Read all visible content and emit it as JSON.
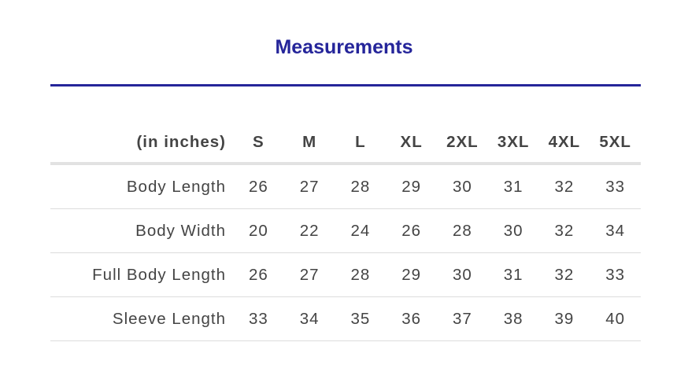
{
  "title": "Measurements",
  "colors": {
    "accent": "#25259a",
    "text": "#444444"
  },
  "table": {
    "unit_label": "(in inches)",
    "sizes": [
      "S",
      "M",
      "L",
      "XL",
      "2XL",
      "3XL",
      "4XL",
      "5XL"
    ],
    "rows": [
      {
        "label": "Body Length",
        "values": [
          "26",
          "27",
          "28",
          "29",
          "30",
          "31",
          "32",
          "33"
        ]
      },
      {
        "label": "Body Width",
        "values": [
          "20",
          "22",
          "24",
          "26",
          "28",
          "30",
          "32",
          "34"
        ]
      },
      {
        "label": "Full Body Length",
        "values": [
          "26",
          "27",
          "28",
          "29",
          "30",
          "31",
          "32",
          "33"
        ]
      },
      {
        "label": "Sleeve Length",
        "values": [
          "33",
          "34",
          "35",
          "36",
          "37",
          "38",
          "39",
          "40"
        ]
      }
    ]
  }
}
